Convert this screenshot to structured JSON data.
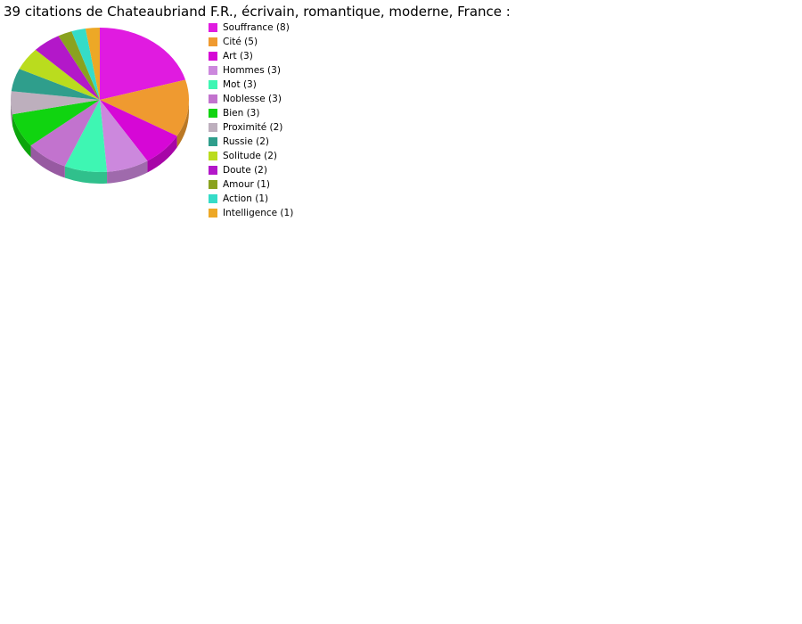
{
  "title": "39 citations de Chateaubriand F.R., écrivain, romantique, moderne, France :",
  "chart_data": {
    "type": "pie",
    "style": "3d-pie",
    "title": "39 citations de Chateaubriand F.R., écrivain, romantique, moderne, France :",
    "total": 39,
    "start_angle_deg": 0,
    "direction": "clockwise",
    "legend_position": "right",
    "legend_format": "{label} ({value})",
    "series": [
      {
        "label": "Souffrance",
        "value": 8,
        "color": "#E01BE0"
      },
      {
        "label": "Cité",
        "value": 5,
        "color": "#EF9A30"
      },
      {
        "label": "Art",
        "value": 3,
        "color": "#D607D6"
      },
      {
        "label": "Hommes",
        "value": 3,
        "color": "#CC88DD"
      },
      {
        "label": "Mot",
        "value": 3,
        "color": "#3EF6B3"
      },
      {
        "label": "Noblesse",
        "value": 3,
        "color": "#C273CE"
      },
      {
        "label": "Bien",
        "value": 3,
        "color": "#10D410"
      },
      {
        "label": "Proximité",
        "value": 2,
        "color": "#BDAFBD"
      },
      {
        "label": "Russie",
        "value": 2,
        "color": "#2F9E8C"
      },
      {
        "label": "Solitude",
        "value": 2,
        "color": "#BADC1E"
      },
      {
        "label": "Doute",
        "value": 2,
        "color": "#B318C9"
      },
      {
        "label": "Amour",
        "value": 1,
        "color": "#8AA21F"
      },
      {
        "label": "Action",
        "value": 1,
        "color": "#35DCC8"
      },
      {
        "label": "Intelligence",
        "value": 1,
        "color": "#EDA826"
      }
    ]
  }
}
